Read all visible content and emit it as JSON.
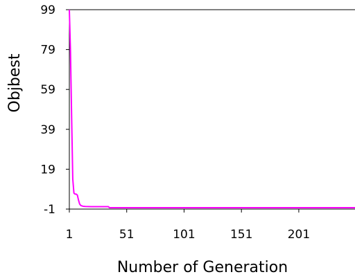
{
  "chart_data": {
    "type": "line",
    "title": "",
    "xlabel": "Number of Generation",
    "ylabel": "Objbest",
    "xlim": [
      1,
      250
    ],
    "ylim": [
      -1,
      99
    ],
    "xticks": [
      1,
      51,
      101,
      151,
      201
    ],
    "yticks": [
      -1,
      19,
      39,
      59,
      79,
      99
    ],
    "xtick_labels": [
      "1",
      "51",
      "101",
      "151",
      "201"
    ],
    "ytick_labels": [
      "-1",
      "19",
      "39",
      "59",
      "79",
      "99"
    ],
    "grid": false,
    "legend": "none",
    "colors": {
      "line": "#ff00ff",
      "axis": "#000000"
    },
    "series": [
      {
        "x": [
          1,
          2,
          3,
          4,
          5,
          6,
          7,
          8,
          9,
          10,
          11,
          12,
          13,
          15,
          20,
          25,
          30,
          35,
          36,
          40,
          60,
          100,
          150,
          200,
          250
        ],
        "y": [
          99,
          78,
          45,
          14,
          7,
          6.5,
          6.5,
          6,
          3.5,
          1.5,
          0.8,
          0.6,
          0.4,
          0.3,
          0.2,
          0.2,
          0.2,
          0.2,
          -0.3,
          -0.3,
          -0.3,
          -0.3,
          -0.3,
          -0.3,
          -0.3
        ]
      }
    ]
  }
}
